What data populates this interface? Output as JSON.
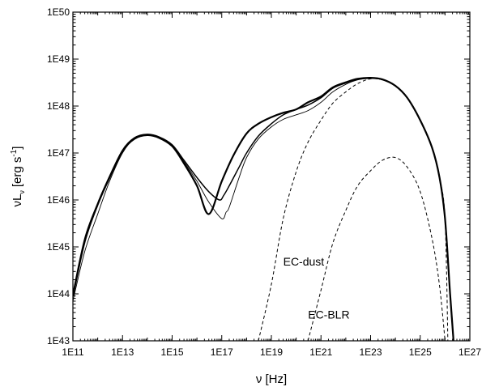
{
  "chart_data": {
    "type": "line",
    "xlabel": "ν [Hz]",
    "ylabel": "νL",
    "ylabel_sub": "ν",
    "ylabel_unit": "[erg s",
    "ylabel_exp": "-1",
    "ylabel_close": "]",
    "x_scale": "log",
    "y_scale": "log",
    "xlim": [
      100000000000.0,
      1e+27
    ],
    "ylim": [
      1e+43,
      1e+50
    ],
    "x_tick_labels": [
      "1E11",
      "1E13",
      "1E15",
      "1E17",
      "1E19",
      "1E21",
      "1E23",
      "1E25",
      "1E27"
    ],
    "y_tick_labels": [
      "1E43",
      "1E44",
      "1E45",
      "1E46",
      "1E47",
      "1E48",
      "1E49",
      "1E50"
    ],
    "grid": false,
    "legend": "none",
    "series": [
      {
        "style": "solid-thick",
        "x": [
          100000000000.0,
          300000000000.0,
          1000000000000.0,
          3000000000000.0,
          10000000000000.0,
          30000000000000.0,
          100000000000000.0,
          300000000000000.0,
          1000000000000000.0,
          3000000000000000.0,
          1e+16,
          3e+16,
          1e+17,
          3e+17,
          1e+18,
          3e+18,
          1e+19,
          3e+19,
          1e+20,
          3e+20,
          1e+21,
          3e+21,
          1e+22,
          3e+22,
          1e+23,
          3e+23,
          1e+24,
          3e+24,
          1e+25,
          3e+25,
          6e+25,
          1e+26,
          1.6e+26,
          2.2e+26
        ],
        "y": [
          9e+43,
          1.3e+45,
          8e+45,
          3e+46,
          1.1e+47,
          2e+47,
          2.4e+47,
          2.1e+47,
          1.4e+47,
          6e+46,
          2e+46,
          5e+45,
          2.5e+46,
          9e+46,
          2.6e+47,
          4.2e+47,
          5.8e+47,
          7.2e+47,
          8.5e+47,
          1.2e+48,
          1.6e+48,
          2.5e+48,
          3.2e+48,
          3.8e+48,
          4e+48,
          3.7e+48,
          2.7e+48,
          1.5e+48,
          5e+47,
          1.3e+47,
          3e+46,
          4e+45,
          1e+44,
          1e+43
        ]
      },
      {
        "style": "solid-medium",
        "x": [
          100000000000.0,
          300000000000.0,
          1000000000000.0,
          3000000000000.0,
          10000000000000.0,
          30000000000000.0,
          100000000000000.0,
          300000000000000.0,
          1000000000000000.0,
          3000000000000000.0,
          1e+16,
          3e+16,
          8e+16,
          1.2e+17,
          2e+17,
          5e+17,
          1e+18,
          3e+18,
          1e+19,
          3e+19,
          1e+20,
          3e+20,
          1e+21,
          3e+21,
          1e+22,
          3e+22,
          1e+23,
          3e+23,
          1e+24,
          3e+24,
          1e+25,
          3e+25,
          6e+25,
          1e+26,
          1.6e+26,
          2.2e+26
        ],
        "y": [
          1e+44,
          1.5e+45,
          8.5e+45,
          3.2e+46,
          1.15e+47,
          2.1e+47,
          2.5e+47,
          2.2e+47,
          1.5e+47,
          7e+46,
          3e+46,
          1.5e+46,
          1e+46,
          1.25e+46,
          2e+46,
          5e+46,
          1e+47,
          2.3e+47,
          4.2e+47,
          6.5e+47,
          8.5e+47,
          1.05e+48,
          1.5e+48,
          2.4e+48,
          3.1e+48,
          3.7e+48,
          3.9e+48,
          3.7e+48,
          2.7e+48,
          1.5e+48,
          5e+47,
          1.3e+47,
          3e+46,
          4e+45,
          1e+44,
          1e+43
        ]
      },
      {
        "style": "solid-thin",
        "x": [
          100000000000.0,
          300000000000.0,
          1000000000000.0,
          3000000000000.0,
          10000000000000.0,
          30000000000000.0,
          100000000000000.0,
          300000000000000.0,
          1000000000000000.0,
          3000000000000000.0,
          1e+16,
          3e+16,
          1e+17,
          1.5e+17,
          2e+17,
          5e+17,
          1e+18,
          3e+18,
          1e+19,
          3e+19,
          1e+20,
          3e+20,
          1e+21,
          3e+21,
          1e+22,
          3e+22,
          1e+23,
          3e+23,
          1e+24,
          3e+24,
          1e+25,
          3e+25,
          6e+25,
          1e+26,
          1.6e+26,
          2.2e+26
        ],
        "y": [
          7e+43,
          8e+44,
          5e+45,
          2.5e+46,
          1e+47,
          2e+47,
          2.4e+47,
          2.1e+47,
          1.4e+47,
          6.5e+46,
          2.5e+46,
          9e+45,
          4e+45,
          5.5e+45,
          7e+45,
          3e+46,
          8e+46,
          2e+47,
          3.6e+47,
          5.2e+47,
          6.5e+47,
          8e+47,
          1.2e+48,
          2e+48,
          2.9e+48,
          3.6e+48,
          3.9e+48,
          3.6e+48,
          2.7e+48,
          1.5e+48,
          5e+47,
          1.3e+47,
          3e+46,
          4e+45,
          1e+44,
          1e+43
        ]
      },
      {
        "name": "EC-dust",
        "style": "dashed",
        "x": [
          3e+18,
          1e+19,
          3e+19,
          1e+20,
          3e+20,
          1e+21,
          3e+21,
          1e+22,
          3e+22,
          1e+23,
          3e+23,
          1e+24,
          3e+24,
          1e+25,
          3e+25,
          6e+25,
          1e+26,
          1.3e+26
        ],
        "y": [
          1e+43,
          1.6e+44,
          4e+45,
          4e+46,
          1.7e+47,
          5e+47,
          1.15e+48,
          2e+48,
          3e+48,
          3.8e+48,
          3.6e+48,
          2.7e+48,
          1.5e+48,
          5e+47,
          1.3e+47,
          3e+46,
          4e+45,
          1e+43
        ]
      },
      {
        "name": "EC-BLR",
        "style": "dashed",
        "x": [
          3e+20,
          1e+21,
          3e+21,
          1e+22,
          3e+22,
          1e+23,
          3e+23,
          1e+24,
          3e+24,
          1e+25,
          3e+25,
          6e+25,
          1e+26
        ],
        "y": [
          1e+43,
          1.2e+44,
          1.2e+45,
          6e+45,
          2e+46,
          4.2e+46,
          7e+46,
          8e+46,
          5e+46,
          1.5e+46,
          1.5e+45,
          1.5e+44,
          1e+43
        ]
      }
    ],
    "annotations": [
      {
        "text": "EC-dust",
        "x": 3e+19,
        "y": 4e+44
      },
      {
        "text": "EC-BLR",
        "x": 3e+20,
        "y": 3e+43
      }
    ]
  }
}
